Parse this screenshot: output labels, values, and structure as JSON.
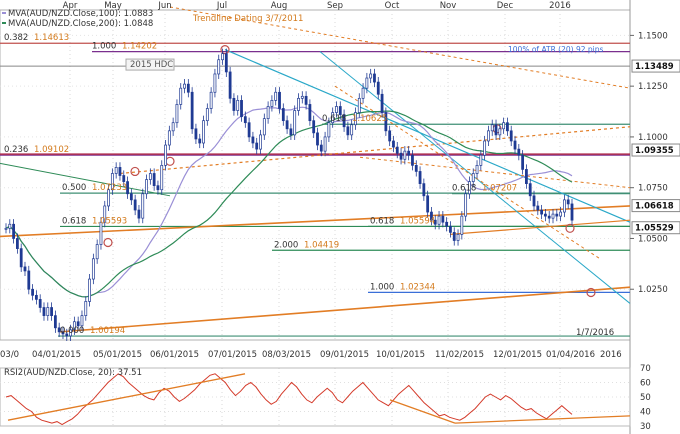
{
  "chart_data": [
    {
      "type": "candlestick",
      "instrument": "AUD/NZD",
      "legend": [
        {
          "text": "MVA(AUD/NZD.Close,100): 1.0883",
          "color": "#9a8fd6"
        },
        {
          "text": "MVA(AUD/NZD.Close,200): 1.0848",
          "color": "#2e8b57"
        }
      ],
      "top_months": [
        "Apr",
        "May",
        "Jun",
        "Jul",
        "Aug",
        "Sep",
        "Oct",
        "Nov",
        "Dec",
        "2016"
      ],
      "x_date_labels": [
        "03/0",
        "04/01/2015",
        "05/01/2015",
        "06/01/2015",
        "07/01/2015",
        "08/03/2015",
        "09/01/2015",
        "10/01/2015",
        "11/02/2015",
        "12/01/2015",
        "01/04/2016",
        "2016"
      ],
      "ylim": [
        1.0,
        1.1625
      ],
      "y_ticks": [
        1.025,
        1.05,
        1.075,
        1.1,
        1.125,
        1.15
      ],
      "y_tick_labels": [
        "1.0250",
        "1.0500",
        "1.0750",
        "1.1000",
        "1.1250",
        "1.1500"
      ],
      "price_tags": [
        {
          "label": "1.13489",
          "value": 1.13489
        },
        {
          "label": "1.09355",
          "value": 1.09355
        },
        {
          "label": "1.06618",
          "value": 1.06618
        },
        {
          "label": "1.05529",
          "value": 1.05529
        }
      ],
      "fib_levels": [
        {
          "ratio": "0.382",
          "price": "1.14613",
          "value": 1.14613
        },
        {
          "ratio": "1.000",
          "price": "1.14202",
          "value": 1.14202
        },
        {
          "ratio": "0.618",
          "price": "1.10625",
          "value": 1.10625
        },
        {
          "ratio": "0.236",
          "price": "1.09102",
          "value": 1.09102
        },
        {
          "ratio": "0.500",
          "price": "1.07233",
          "value": 1.07233
        },
        {
          "ratio": "0.618",
          "price": "1.07207",
          "value": 1.07207
        },
        {
          "ratio": "0.618",
          "price": "1.05593",
          "value": 1.05593
        },
        {
          "ratio": "0.618",
          "price": "1.05594",
          "value": 1.05594
        },
        {
          "ratio": "2.000",
          "price": "1.04419",
          "value": 1.04419
        },
        {
          "ratio": "1.000",
          "price": "1.02344",
          "value": 1.02344
        },
        {
          "ratio": "0.000",
          "price": "1.00194",
          "value": 1.00194
        }
      ],
      "annotations": [
        "Trendline Dating 3/7/2011",
        "2015 HDC",
        "100% of ATR (20) 92 pips",
        "1/7/2016"
      ],
      "close_series": [
        1.055,
        1.057,
        1.05,
        1.045,
        1.036,
        1.034,
        1.025,
        1.022,
        1.02,
        1.016,
        1.012,
        1.016,
        1.012,
        1.006,
        1.004,
        1.003,
        1.002,
        1.005,
        1.009,
        1.007,
        1.012,
        1.019,
        1.03,
        1.04,
        1.047,
        1.058,
        1.066,
        1.074,
        1.082,
        1.085,
        1.081,
        1.078,
        1.072,
        1.069,
        1.064,
        1.06,
        1.072,
        1.079,
        1.082,
        1.076,
        1.074,
        1.086,
        1.096,
        1.103,
        1.107,
        1.116,
        1.124,
        1.126,
        1.122,
        1.104,
        1.099,
        1.097,
        1.108,
        1.114,
        1.122,
        1.131,
        1.138,
        1.141,
        1.132,
        1.119,
        1.113,
        1.118,
        1.11,
        1.107,
        1.1,
        1.097,
        1.094,
        1.101,
        1.109,
        1.115,
        1.118,
        1.122,
        1.114,
        1.108,
        1.104,
        1.101,
        1.113,
        1.119,
        1.12,
        1.116,
        1.108,
        1.102,
        1.096,
        1.093,
        1.1,
        1.107,
        1.112,
        1.115,
        1.111,
        1.105,
        1.101,
        1.106,
        1.112,
        1.119,
        1.124,
        1.129,
        1.131,
        1.127,
        1.121,
        1.112,
        1.103,
        1.098,
        1.095,
        1.092,
        1.089,
        1.093,
        1.091,
        1.086,
        1.083,
        1.077,
        1.071,
        1.063,
        1.059,
        1.057,
        1.061,
        1.058,
        1.056,
        1.053,
        1.049,
        1.052,
        1.061,
        1.072,
        1.078,
        1.082,
        1.086,
        1.091,
        1.098,
        1.103,
        1.106,
        1.101,
        1.104,
        1.107,
        1.103,
        1.098,
        1.094,
        1.091,
        1.084,
        1.077,
        1.071,
        1.066,
        1.064,
        1.062,
        1.061,
        1.06,
        1.062,
        1.061,
        1.063,
        1.069,
        1.067,
        1.059
      ],
      "rsi": {
        "label": "RSI2(AUD/NZD.Close, 20): 37.51",
        "value": 37.51,
        "ylim": [
          30,
          70
        ],
        "y_ticks": [
          30,
          40,
          50,
          60,
          70
        ],
        "y_tick_labels": [
          "30",
          "40",
          "50",
          "60",
          "70"
        ],
        "series": [
          50,
          51,
          48,
          45,
          42,
          40,
          36,
          34,
          33,
          32,
          33,
          31,
          33,
          35,
          38,
          42,
          45,
          48,
          52,
          56,
          60,
          63,
          66,
          64,
          60,
          57,
          54,
          51,
          49,
          48,
          53,
          56,
          54,
          50,
          47,
          49,
          52,
          55,
          59,
          62,
          65,
          66,
          63,
          60,
          55,
          51,
          54,
          58,
          60,
          57,
          52,
          48,
          45,
          47,
          52,
          56,
          60,
          57,
          52,
          48,
          46,
          50,
          53,
          56,
          53,
          48,
          46,
          50,
          54,
          57,
          60,
          56,
          52,
          48,
          46,
          44,
          48,
          52,
          55,
          58,
          54,
          50,
          46,
          43,
          40,
          37,
          38,
          36,
          35,
          34,
          36,
          39,
          42,
          46,
          50,
          52,
          50,
          48,
          51,
          49,
          46,
          43,
          41,
          42,
          39,
          37,
          35,
          38,
          41,
          44,
          41,
          38
        ]
      }
    }
  ]
}
